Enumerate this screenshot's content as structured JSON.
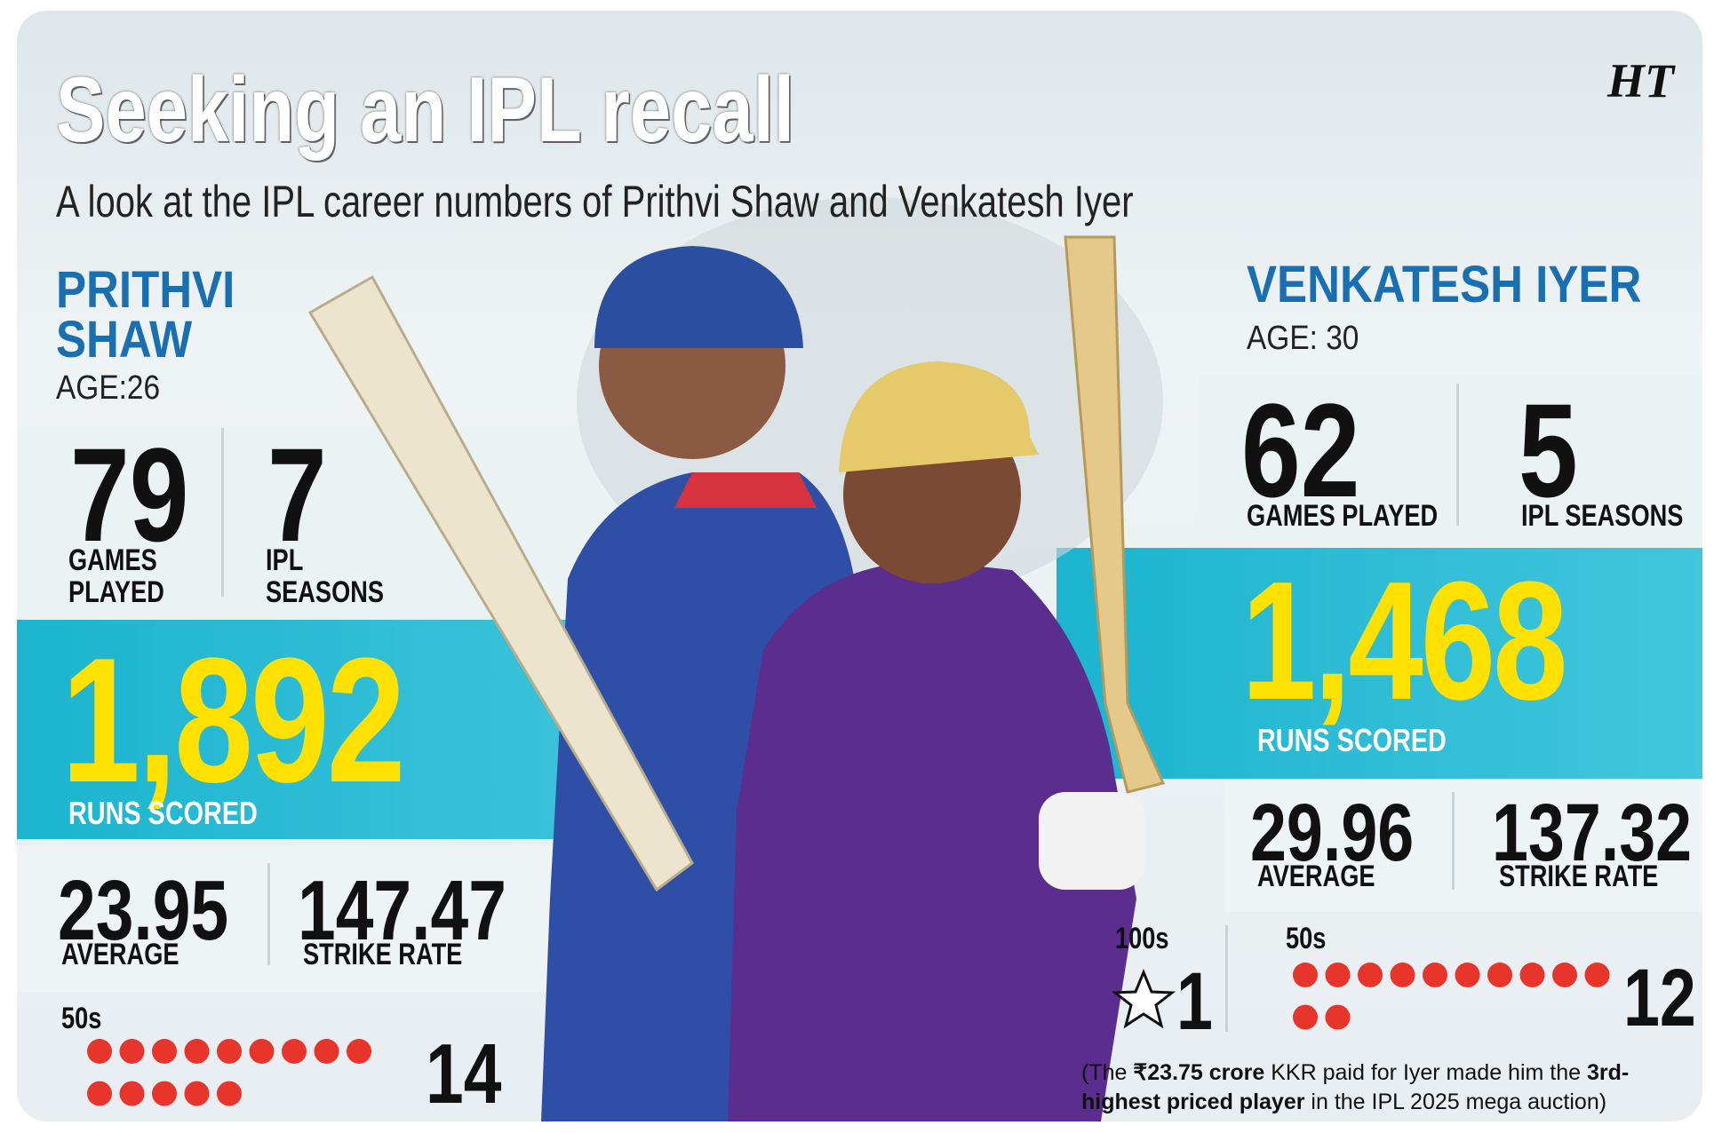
{
  "header": {
    "title": "Seeking an IPL recall",
    "subtitle": "A look at the IPL career numbers of Prithvi Shaw and Venkatesh Iyer",
    "logo": "HT"
  },
  "players": [
    {
      "name": [
        "PRITHVI",
        "SHAW"
      ],
      "age": "AGE:26",
      "games": 79,
      "games_label": "GAMES PLAYED",
      "seasons": 7,
      "seasons_label": "IPL SEASONS",
      "runs": "1,892",
      "runs_label": "RUNS SCORED",
      "average": 23.95,
      "average_label": "AVERAGE",
      "strike_rate": 147.47,
      "strike_rate_label": "STRIKE RATE",
      "fifties_label": "50s",
      "fifties": 14
    },
    {
      "name": [
        "VENKATESH IYER"
      ],
      "age": "AGE: 30",
      "games": 62,
      "games_label": "GAMES PLAYED",
      "seasons": 5,
      "seasons_label": "IPL SEASONS",
      "runs": "1,468",
      "runs_label": "RUNS SCORED",
      "average": 29.96,
      "average_label": "AVERAGE",
      "strike_rate": 137.32,
      "strike_rate_label": "STRIKE RATE",
      "hundreds_label": "100s",
      "hundreds": 1,
      "fifties_label": "50s",
      "fifties": 12
    }
  ],
  "note": [
    {
      "text": "(The ",
      "bold": false
    },
    {
      "text": "₹23.75 crore",
      "bold": true
    },
    {
      "text": " KKR paid for Iyer made him the ",
      "bold": false
    },
    {
      "text": "3rd-highest priced player",
      "bold": true
    },
    {
      "text": " in the IPL 2025 mega auction)",
      "bold": false
    }
  ]
}
